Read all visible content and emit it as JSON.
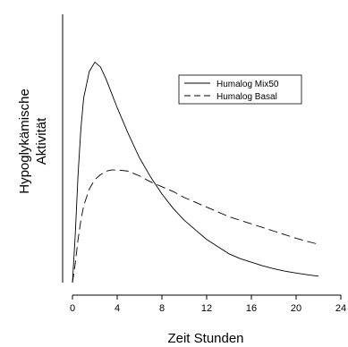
{
  "chart_data": {
    "type": "line",
    "xlabel": "Zeit Stunden",
    "ylabel_lines": [
      "Hypoglykämische",
      "Aktivität"
    ],
    "xlim": [
      0,
      24
    ],
    "xticks": [
      0,
      4,
      8,
      12,
      16,
      20,
      24
    ],
    "ylim": [
      0,
      1
    ],
    "y_tick_labels": "none",
    "grid": false,
    "legend_position": "top-right",
    "series": [
      {
        "name": "Humalog Mix50",
        "style": "solid",
        "x": [
          0,
          0.25,
          0.5,
          0.75,
          1,
          1.5,
          2,
          2.5,
          3,
          3.5,
          4,
          5,
          6,
          7,
          8,
          9,
          10,
          11,
          12,
          13,
          14,
          15,
          16,
          17,
          18,
          19,
          20,
          21,
          22
        ],
        "y": [
          0.0,
          0.2,
          0.45,
          0.64,
          0.77,
          0.88,
          0.92,
          0.9,
          0.85,
          0.79,
          0.73,
          0.62,
          0.52,
          0.44,
          0.37,
          0.31,
          0.26,
          0.22,
          0.18,
          0.15,
          0.12,
          0.1,
          0.085,
          0.07,
          0.058,
          0.048,
          0.04,
          0.033,
          0.027
        ]
      },
      {
        "name": "Humalog Basal",
        "style": "dashed",
        "x": [
          0,
          0.25,
          0.5,
          0.75,
          1,
          1.5,
          2,
          2.5,
          3,
          3.5,
          4,
          5,
          6,
          7,
          8,
          9,
          10,
          11,
          12,
          13,
          14,
          15,
          16,
          17,
          18,
          19,
          20,
          21,
          22
        ],
        "y": [
          0.0,
          0.08,
          0.18,
          0.26,
          0.32,
          0.39,
          0.43,
          0.45,
          0.465,
          0.47,
          0.47,
          0.465,
          0.445,
          0.42,
          0.4,
          0.38,
          0.355,
          0.335,
          0.315,
          0.295,
          0.275,
          0.26,
          0.245,
          0.23,
          0.215,
          0.2,
          0.185,
          0.172,
          0.16
        ]
      }
    ]
  }
}
